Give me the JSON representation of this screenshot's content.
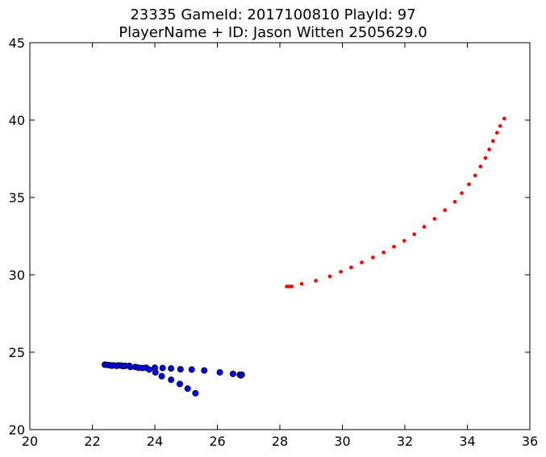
{
  "chart_data": {
    "type": "scatter",
    "title_lines": [
      "23335 GameId: 2017100810 PlayId: 97",
      "PlayerName + ID: Jason Witten 2505629.0"
    ],
    "xlabel": "",
    "ylabel": "",
    "xlim": [
      20,
      36
    ],
    "ylim": [
      20,
      45
    ],
    "xticks": [
      20,
      22,
      24,
      26,
      28,
      30,
      32,
      34,
      36
    ],
    "yticks": [
      20,
      25,
      30,
      35,
      40,
      45
    ],
    "grid": false,
    "series": [
      {
        "color": "#0000ff",
        "marker": "circle-large",
        "points": [
          [
            22.4,
            24.2
          ],
          [
            22.48,
            24.18
          ],
          [
            22.56,
            24.16
          ],
          [
            22.62,
            24.13
          ],
          [
            22.68,
            24.15
          ],
          [
            22.78,
            24.12
          ],
          [
            22.83,
            24.15
          ],
          [
            22.92,
            24.14
          ],
          [
            22.98,
            24.1
          ],
          [
            23.05,
            24.12
          ],
          [
            23.18,
            24.12
          ],
          [
            23.22,
            24.05
          ],
          [
            23.38,
            24.05
          ],
          [
            23.48,
            24.0
          ],
          [
            23.6,
            23.98
          ],
          [
            23.72,
            24.0
          ],
          [
            23.82,
            23.88
          ],
          [
            24.0,
            24.0
          ],
          [
            24.25,
            23.98
          ],
          [
            24.52,
            23.95
          ],
          [
            24.82,
            23.9
          ],
          [
            25.18,
            23.88
          ],
          [
            25.58,
            23.82
          ],
          [
            26.08,
            23.7
          ],
          [
            26.5,
            23.6
          ],
          [
            26.72,
            23.55
          ],
          [
            26.75,
            23.5
          ],
          [
            26.78,
            23.55
          ],
          [
            24.02,
            23.7
          ],
          [
            24.22,
            23.45
          ],
          [
            24.52,
            23.22
          ],
          [
            24.8,
            22.95
          ],
          [
            25.05,
            22.65
          ],
          [
            25.3,
            22.35
          ]
        ]
      },
      {
        "color": "#ff0000",
        "marker": "dot-small",
        "points": [
          [
            28.22,
            29.25
          ],
          [
            28.3,
            29.25
          ],
          [
            28.38,
            29.25
          ],
          [
            28.7,
            29.42
          ],
          [
            29.15,
            29.62
          ],
          [
            29.6,
            29.9
          ],
          [
            29.95,
            30.2
          ],
          [
            30.28,
            30.48
          ],
          [
            30.62,
            30.8
          ],
          [
            30.98,
            31.12
          ],
          [
            31.32,
            31.45
          ],
          [
            31.65,
            31.82
          ],
          [
            31.98,
            32.2
          ],
          [
            32.3,
            32.62
          ],
          [
            32.62,
            33.1
          ],
          [
            32.95,
            33.62
          ],
          [
            33.28,
            34.18
          ],
          [
            33.6,
            34.72
          ],
          [
            33.82,
            35.28
          ],
          [
            34.05,
            35.85
          ],
          [
            34.25,
            36.42
          ],
          [
            34.42,
            37.0
          ],
          [
            34.58,
            37.55
          ],
          [
            34.7,
            38.1
          ],
          [
            34.82,
            38.65
          ],
          [
            34.95,
            39.18
          ],
          [
            35.05,
            39.62
          ],
          [
            35.18,
            40.1
          ]
        ]
      }
    ]
  }
}
